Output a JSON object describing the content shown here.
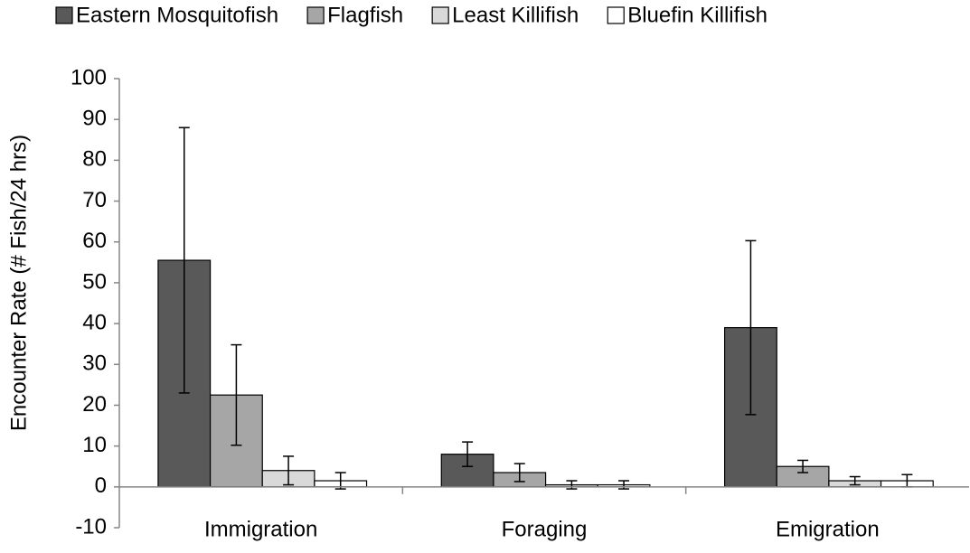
{
  "chart_data": {
    "type": "bar",
    "y_label": "Encounter Rate (# Fish/24 hrs)",
    "categories": [
      "Immigration",
      "Foraging",
      "Emigration"
    ],
    "series": [
      {
        "name": "Eastern Mosquitofish",
        "color": "#595959",
        "values": [
          55.5,
          8,
          39
        ],
        "errors": [
          32.5,
          3,
          21.3
        ]
      },
      {
        "name": "Flagfish",
        "color": "#a6a6a6",
        "values": [
          22.5,
          3.5,
          5
        ],
        "errors": [
          12.3,
          2.2,
          1.5
        ]
      },
      {
        "name": "Least Killifish",
        "color": "#d9d9d9",
        "values": [
          4,
          0.5,
          1.5
        ],
        "errors": [
          3.5,
          1,
          1
        ]
      },
      {
        "name": "Bluefin Killifish",
        "color": "#ffffff",
        "values": [
          1.5,
          0.5,
          1.5
        ],
        "errors": [
          2,
          1,
          1.5
        ]
      }
    ],
    "ylim": [
      -10,
      100
    ],
    "yticks": [
      -10,
      0,
      10,
      20,
      30,
      40,
      50,
      60,
      70,
      80,
      90,
      100
    ],
    "legend": "top"
  }
}
